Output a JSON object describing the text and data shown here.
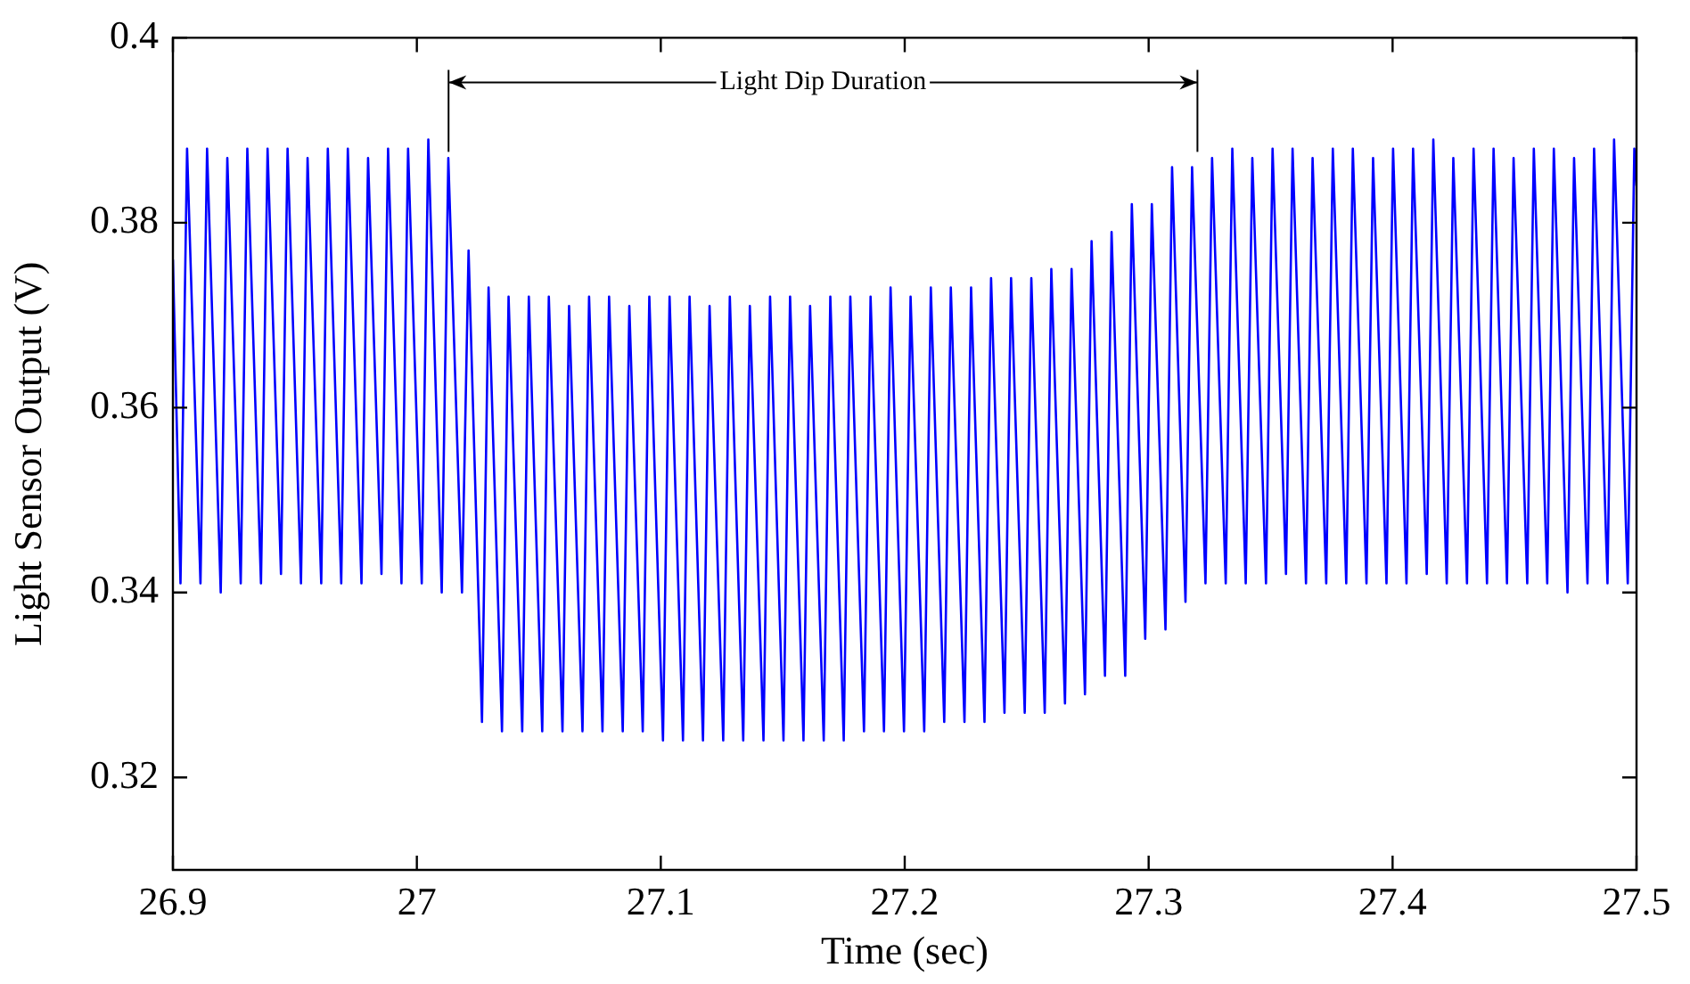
{
  "chart_data": {
    "type": "line",
    "xlabel": "Time (sec)",
    "ylabel": "Light Sensor Output (V)",
    "x": [
      26.9,
      26.9031,
      26.9058,
      26.9113,
      26.914,
      26.9196,
      26.9223,
      26.9278,
      26.9305,
      26.9361,
      26.9388,
      26.9443,
      26.947,
      26.9525,
      26.9552,
      26.9608,
      26.9635,
      26.969,
      26.9717,
      26.9773,
      26.98,
      26.9855,
      26.9882,
      26.9937,
      26.9964,
      27.002,
      27.0047,
      27.0102,
      27.0129,
      27.0185,
      27.0212,
      27.0267,
      27.0294,
      27.0349,
      27.0376,
      27.0432,
      27.0459,
      27.0514,
      27.0541,
      27.0597,
      27.0624,
      27.0679,
      27.0706,
      27.0761,
      27.0788,
      27.0844,
      27.0871,
      27.0926,
      27.0953,
      27.1009,
      27.1036,
      27.1091,
      27.1118,
      27.1173,
      27.12,
      27.1256,
      27.1283,
      27.1338,
      27.1365,
      27.1421,
      27.1448,
      27.1503,
      27.153,
      27.1585,
      27.1612,
      27.1668,
      27.1695,
      27.175,
      27.1777,
      27.1833,
      27.186,
      27.1915,
      27.1942,
      27.1997,
      27.2024,
      27.208,
      27.2107,
      27.2162,
      27.2189,
      27.2245,
      27.2272,
      27.2327,
      27.2354,
      27.2409,
      27.2436,
      27.2492,
      27.2519,
      27.2574,
      27.2601,
      27.2657,
      27.2684,
      27.2739,
      27.2766,
      27.2821,
      27.2848,
      27.2904,
      27.2931,
      27.2986,
      27.3013,
      27.3069,
      27.3096,
      27.3151,
      27.3178,
      27.3233,
      27.326,
      27.3316,
      27.3343,
      27.3398,
      27.3425,
      27.3481,
      27.3508,
      27.3563,
      27.359,
      27.3645,
      27.3672,
      27.3728,
      27.3755,
      27.381,
      27.3837,
      27.3893,
      27.392,
      27.3975,
      27.4002,
      27.4057,
      27.4084,
      27.414,
      27.4167,
      27.4222,
      27.4249,
      27.4305,
      27.4332,
      27.4387,
      27.4414,
      27.4469,
      27.4496,
      27.4552,
      27.4579,
      27.4634,
      27.4661,
      27.4717,
      27.4744,
      27.4799,
      27.4826,
      27.4881,
      27.4908,
      27.4964,
      27.4991,
      27.5
    ],
    "series": [
      {
        "color": "#0000ff",
        "values": [
          0.376,
          0.341,
          0.388,
          0.341,
          0.388,
          0.34,
          0.387,
          0.341,
          0.388,
          0.341,
          0.388,
          0.342,
          0.388,
          0.341,
          0.387,
          0.341,
          0.388,
          0.341,
          0.388,
          0.341,
          0.387,
          0.342,
          0.388,
          0.341,
          0.388,
          0.341,
          0.389,
          0.34,
          0.387,
          0.34,
          0.377,
          0.326,
          0.373,
          0.325,
          0.372,
          0.325,
          0.372,
          0.325,
          0.372,
          0.325,
          0.371,
          0.325,
          0.372,
          0.325,
          0.372,
          0.325,
          0.371,
          0.325,
          0.372,
          0.324,
          0.372,
          0.324,
          0.372,
          0.324,
          0.371,
          0.324,
          0.372,
          0.324,
          0.371,
          0.324,
          0.372,
          0.324,
          0.372,
          0.324,
          0.371,
          0.324,
          0.372,
          0.324,
          0.372,
          0.325,
          0.372,
          0.325,
          0.373,
          0.325,
          0.372,
          0.325,
          0.373,
          0.326,
          0.373,
          0.326,
          0.373,
          0.326,
          0.374,
          0.327,
          0.374,
          0.327,
          0.374,
          0.327,
          0.375,
          0.328,
          0.375,
          0.329,
          0.378,
          0.331,
          0.379,
          0.331,
          0.382,
          0.335,
          0.382,
          0.336,
          0.386,
          0.339,
          0.386,
          0.341,
          0.387,
          0.341,
          0.388,
          0.341,
          0.387,
          0.341,
          0.388,
          0.342,
          0.388,
          0.341,
          0.387,
          0.341,
          0.388,
          0.341,
          0.388,
          0.341,
          0.387,
          0.341,
          0.388,
          0.341,
          0.388,
          0.342,
          0.389,
          0.341,
          0.387,
          0.341,
          0.388,
          0.341,
          0.388,
          0.341,
          0.387,
          0.341,
          0.388,
          0.341,
          0.388,
          0.34,
          0.387,
          0.341,
          0.388,
          0.341,
          0.389,
          0.341,
          0.388,
          0.384
        ]
      }
    ],
    "xlim": [
      26.9,
      27.5
    ],
    "xticks": [
      26.9,
      27,
      27.1,
      27.2,
      27.3,
      27.4,
      27.5
    ],
    "ylim": [
      0.31,
      0.4
    ],
    "yticks": [
      0.32,
      0.34,
      0.36,
      0.38,
      0.4
    ],
    "ref_lines": [
      {
        "axis": "x",
        "value": 27.013,
        "color": "#000000"
      },
      {
        "axis": "x",
        "value": 27.32,
        "color": "#000000"
      }
    ],
    "annotations": [
      "Light Dip Duration"
    ],
    "grid": false,
    "legend": false,
    "marker": "none",
    "line_style": "solid"
  }
}
